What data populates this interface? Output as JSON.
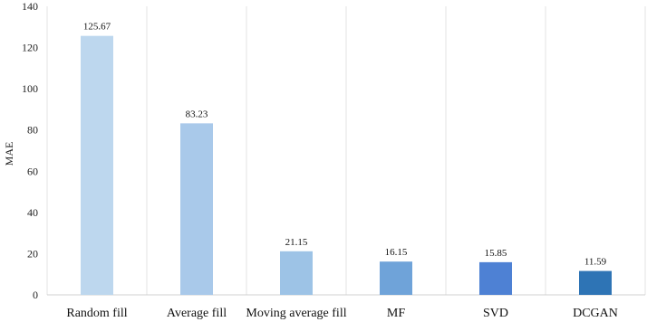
{
  "chart_data": {
    "type": "bar",
    "title": "",
    "xlabel": "",
    "ylabel": "MAE",
    "ylim": [
      0,
      140
    ],
    "yticks": [
      0,
      20,
      40,
      60,
      80,
      100,
      120,
      140
    ],
    "grid": "vertical category separators",
    "legend": "none",
    "categories": [
      "Random fill",
      "Average fill",
      "Moving average fill",
      "MF",
      "SVD",
      "DCGAN"
    ],
    "values": [
      125.67,
      83.23,
      21.15,
      16.15,
      15.85,
      11.59
    ],
    "value_labels": [
      "125.67",
      "83.23",
      "21.15",
      "16.15",
      "15.85",
      "11.59"
    ],
    "colors": [
      "#bdd7ee",
      "#a9c9ea",
      "#9dc3e6",
      "#6fa3d9",
      "#4e81d4",
      "#2e74b5"
    ]
  }
}
